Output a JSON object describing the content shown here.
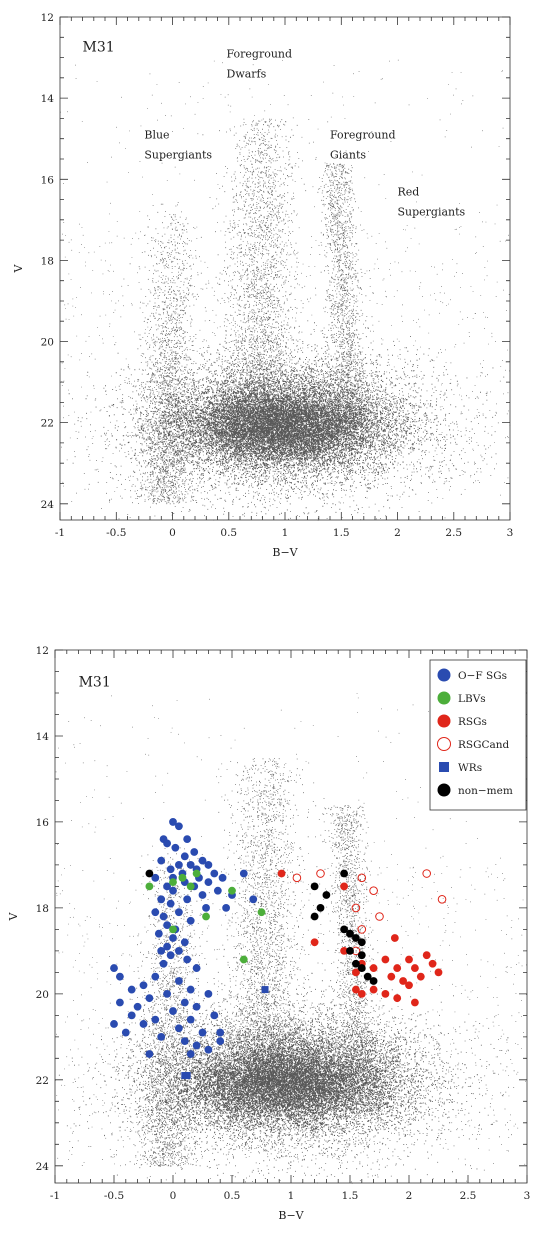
{
  "chart_data": [
    {
      "type": "scatter",
      "panel_label": "M31",
      "xlabel": "B−V",
      "ylabel": "V",
      "xlim": [
        -1,
        3
      ],
      "ylim": [
        24.4,
        12
      ],
      "y_inverted": true,
      "xticks": [
        "-1",
        "-0.5",
        "0",
        "0.5",
        "1",
        "1.5",
        "2",
        "2.5",
        "3"
      ],
      "yticks": [
        "12",
        "14",
        "16",
        "18",
        "20",
        "22",
        "24"
      ],
      "annotations": [
        {
          "lines": [
            "Foreground",
            "Dwarfs"
          ],
          "x": 0.48,
          "y": 13.0
        },
        {
          "lines": [
            "Blue",
            "Supergiants"
          ],
          "x": -0.25,
          "y": 15.0
        },
        {
          "lines": [
            "Foreground",
            "Giants"
          ],
          "x": 1.4,
          "y": 15.0
        },
        {
          "lines": [
            "Red",
            "Supergiants"
          ],
          "x": 2.0,
          "y": 16.4
        }
      ],
      "background_colour": "#000000"
    },
    {
      "type": "scatter",
      "panel_label": "M31",
      "xlabel": "B−V",
      "ylabel": "V",
      "xlim": [
        -1,
        3
      ],
      "ylim": [
        24.4,
        12
      ],
      "y_inverted": true,
      "xticks": [
        "-1",
        "-0.5",
        "0",
        "0.5",
        "1",
        "1.5",
        "2",
        "2.5",
        "3"
      ],
      "yticks": [
        "12",
        "14",
        "16",
        "18",
        "20",
        "22",
        "24"
      ],
      "legend_position": "top-right",
      "series": [
        {
          "name": "O−F SGs",
          "marker": "circle-filled",
          "color": "#2a4bb0",
          "points": [
            [
              0.0,
              16.0
            ],
            [
              0.05,
              16.1
            ],
            [
              -0.08,
              16.4
            ],
            [
              0.12,
              16.4
            ],
            [
              -0.05,
              16.5
            ],
            [
              0.02,
              16.6
            ],
            [
              0.18,
              16.7
            ],
            [
              0.1,
              16.8
            ],
            [
              -0.1,
              16.9
            ],
            [
              0.25,
              16.9
            ],
            [
              0.05,
              17.0
            ],
            [
              0.15,
              17.0
            ],
            [
              0.3,
              17.0
            ],
            [
              -0.02,
              17.1
            ],
            [
              0.2,
              17.1
            ],
            [
              0.35,
              17.2
            ],
            [
              0.08,
              17.2
            ],
            [
              0.6,
              17.2
            ],
            [
              -0.15,
              17.3
            ],
            [
              0.0,
              17.3
            ],
            [
              0.22,
              17.3
            ],
            [
              0.42,
              17.3
            ],
            [
              0.1,
              17.4
            ],
            [
              0.3,
              17.4
            ],
            [
              -0.05,
              17.5
            ],
            [
              0.18,
              17.5
            ],
            [
              0.38,
              17.6
            ],
            [
              0.0,
              17.6
            ],
            [
              0.25,
              17.7
            ],
            [
              0.5,
              17.7
            ],
            [
              -0.1,
              17.8
            ],
            [
              0.12,
              17.8
            ],
            [
              0.68,
              17.8
            ],
            [
              -0.02,
              17.9
            ],
            [
              0.28,
              18.0
            ],
            [
              0.45,
              18.0
            ],
            [
              -0.15,
              18.1
            ],
            [
              0.05,
              18.1
            ],
            [
              -0.08,
              18.2
            ],
            [
              0.15,
              18.3
            ],
            [
              -0.05,
              18.4
            ],
            [
              0.02,
              18.5
            ],
            [
              -0.12,
              18.6
            ],
            [
              0.0,
              18.7
            ],
            [
              0.1,
              18.8
            ],
            [
              -0.05,
              18.9
            ],
            [
              -0.1,
              19.0
            ],
            [
              0.05,
              19.0
            ],
            [
              -0.02,
              19.1
            ],
            [
              0.12,
              19.2
            ],
            [
              -0.08,
              19.3
            ],
            [
              0.2,
              19.4
            ],
            [
              -0.5,
              19.4
            ],
            [
              -0.45,
              19.6
            ],
            [
              -0.15,
              19.6
            ],
            [
              0.05,
              19.7
            ],
            [
              -0.25,
              19.8
            ],
            [
              0.15,
              19.9
            ],
            [
              -0.35,
              19.9
            ],
            [
              0.3,
              20.0
            ],
            [
              -0.05,
              20.0
            ],
            [
              -0.2,
              20.1
            ],
            [
              0.1,
              20.2
            ],
            [
              -0.45,
              20.2
            ],
            [
              0.2,
              20.3
            ],
            [
              -0.3,
              20.3
            ],
            [
              0.0,
              20.4
            ],
            [
              -0.35,
              20.5
            ],
            [
              0.35,
              20.5
            ],
            [
              -0.15,
              20.6
            ],
            [
              0.15,
              20.6
            ],
            [
              -0.5,
              20.7
            ],
            [
              -0.25,
              20.7
            ],
            [
              0.05,
              20.8
            ],
            [
              -0.4,
              20.9
            ],
            [
              0.25,
              20.9
            ],
            [
              0.4,
              20.9
            ],
            [
              -0.1,
              21.0
            ],
            [
              0.1,
              21.1
            ],
            [
              0.2,
              21.2
            ],
            [
              0.3,
              21.3
            ],
            [
              0.15,
              21.4
            ],
            [
              -0.2,
              21.4
            ],
            [
              0.4,
              21.1
            ]
          ]
        },
        {
          "name": "LBVs",
          "marker": "circle-filled",
          "color": "#4cae3a",
          "points": [
            [
              0.2,
              17.2
            ],
            [
              0.08,
              17.3
            ],
            [
              0.0,
              17.4
            ],
            [
              -0.2,
              17.5
            ],
            [
              0.15,
              17.5
            ],
            [
              0.5,
              17.6
            ],
            [
              0.28,
              18.2
            ],
            [
              0.75,
              18.1
            ],
            [
              0.0,
              18.5
            ],
            [
              0.6,
              19.2
            ]
          ]
        },
        {
          "name": "RSGs",
          "marker": "circle-filled",
          "color": "#e0261a",
          "points": [
            [
              0.92,
              17.2
            ],
            [
              1.45,
              17.5
            ],
            [
              1.2,
              18.8
            ],
            [
              1.88,
              18.7
            ],
            [
              1.45,
              19.0
            ],
            [
              1.8,
              19.2
            ],
            [
              2.0,
              19.2
            ],
            [
              1.6,
              19.3
            ],
            [
              2.15,
              19.1
            ],
            [
              1.7,
              19.4
            ],
            [
              1.9,
              19.4
            ],
            [
              2.05,
              19.4
            ],
            [
              2.2,
              19.3
            ],
            [
              2.25,
              19.5
            ],
            [
              2.1,
              19.6
            ],
            [
              1.55,
              19.5
            ],
            [
              1.85,
              19.6
            ],
            [
              1.95,
              19.7
            ],
            [
              2.0,
              19.8
            ],
            [
              1.7,
              19.9
            ],
            [
              1.8,
              20.0
            ],
            [
              1.6,
              20.0
            ],
            [
              1.9,
              20.1
            ],
            [
              2.05,
              20.2
            ],
            [
              1.55,
              19.9
            ]
          ]
        },
        {
          "name": "RSGCand",
          "marker": "circle-open",
          "color": "#e0261a",
          "points": [
            [
              1.05,
              17.3
            ],
            [
              1.25,
              17.2
            ],
            [
              1.6,
              17.3
            ],
            [
              1.7,
              17.6
            ],
            [
              2.15,
              17.2
            ],
            [
              2.28,
              17.8
            ],
            [
              1.75,
              18.2
            ],
            [
              1.55,
              18.0
            ],
            [
              1.6,
              18.5
            ],
            [
              1.55,
              19.0
            ]
          ]
        },
        {
          "name": "WRs",
          "marker": "square-filled",
          "color": "#2a4bb0",
          "points": [
            [
              0.78,
              19.9
            ],
            [
              0.1,
              21.9
            ],
            [
              0.12,
              21.9
            ]
          ]
        },
        {
          "name": "non−mem",
          "marker": "circle-filled",
          "color": "#000000",
          "points": [
            [
              -0.2,
              17.2
            ],
            [
              1.45,
              17.2
            ],
            [
              1.2,
              17.5
            ],
            [
              1.3,
              17.7
            ],
            [
              1.25,
              18.0
            ],
            [
              1.2,
              18.2
            ],
            [
              1.45,
              18.5
            ],
            [
              1.5,
              18.6
            ],
            [
              1.55,
              18.7
            ],
            [
              1.6,
              18.8
            ],
            [
              1.5,
              19.0
            ],
            [
              1.6,
              19.1
            ],
            [
              1.55,
              19.3
            ],
            [
              1.6,
              19.4
            ],
            [
              1.65,
              19.6
            ],
            [
              1.7,
              19.7
            ]
          ]
        }
      ],
      "background_colour": "#000000"
    }
  ]
}
